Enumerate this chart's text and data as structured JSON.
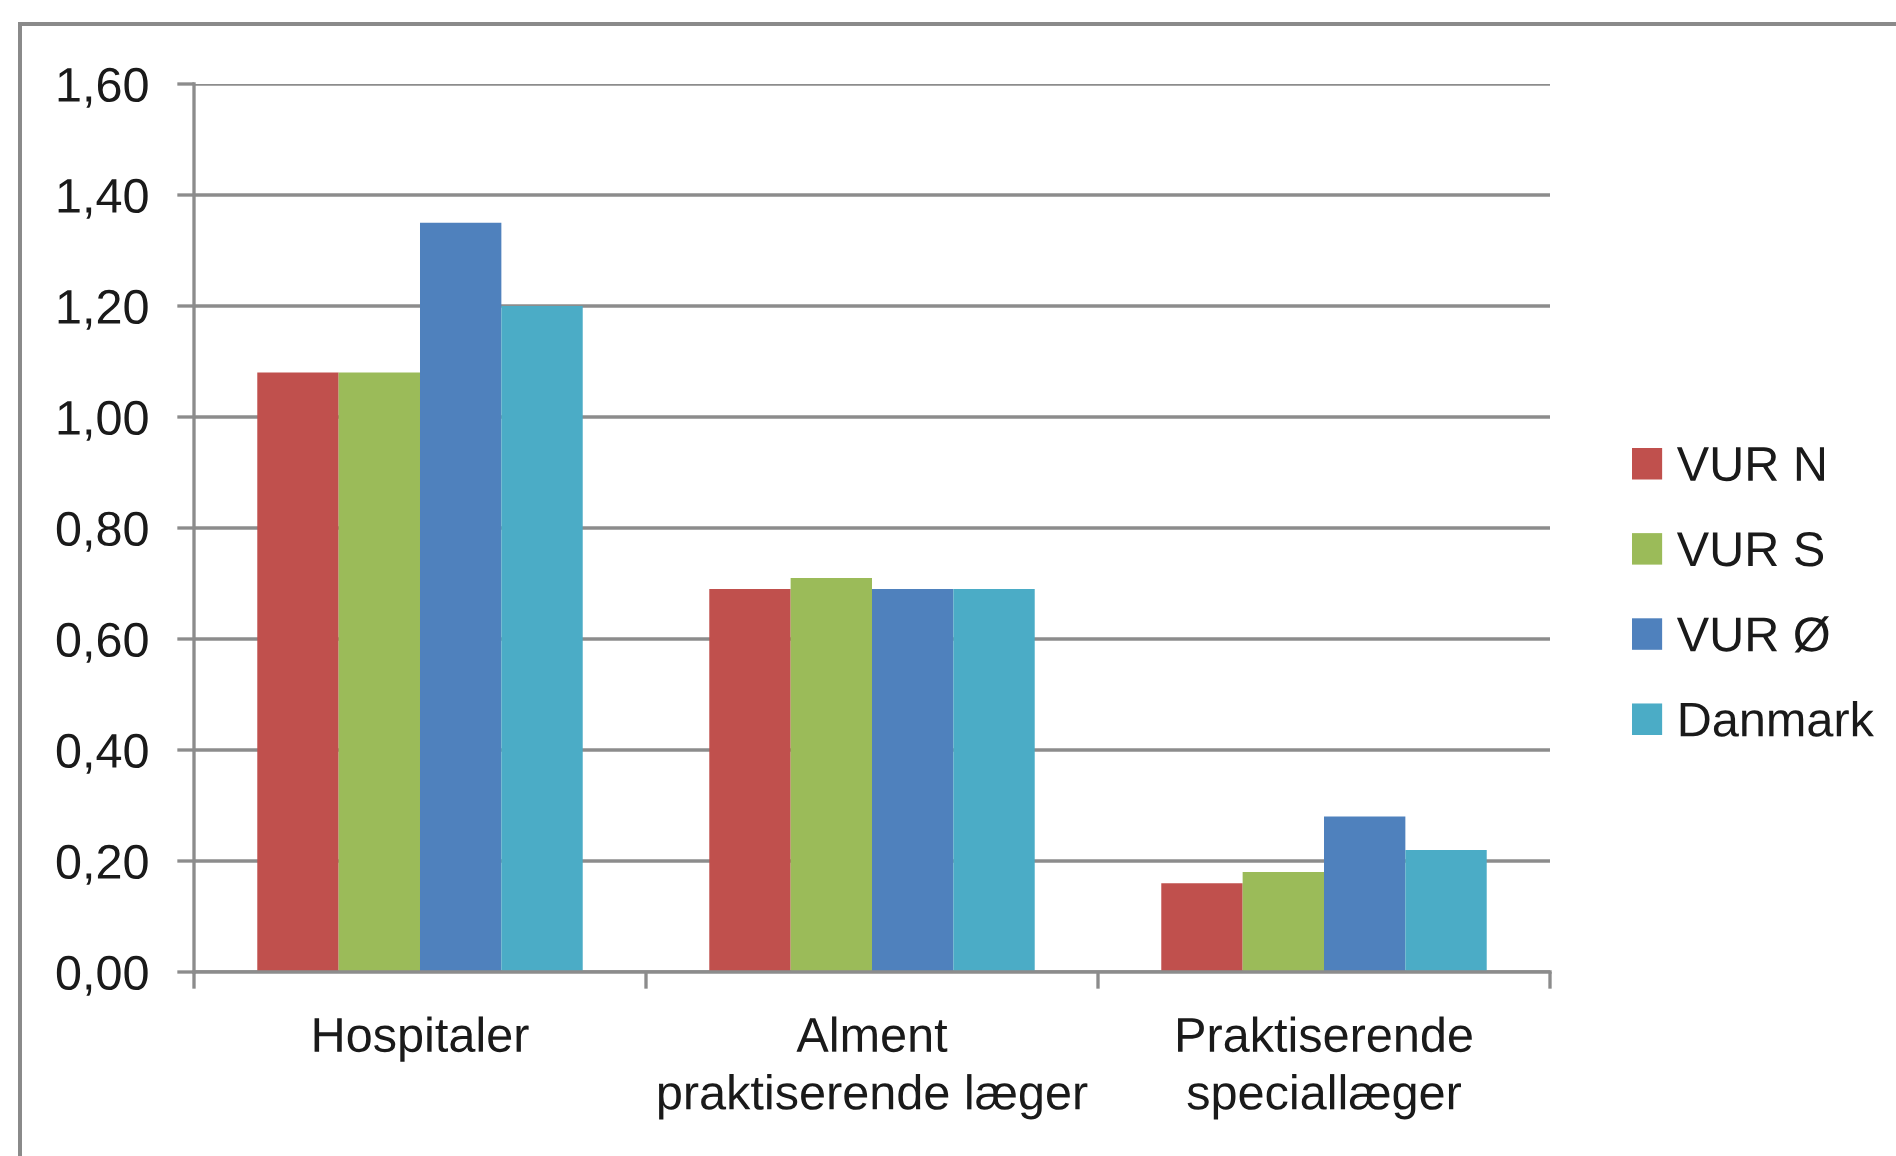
{
  "chart_data": {
    "type": "bar",
    "categories": [
      "Hospitaler",
      "Alment\npraktiserende læger",
      "Praktiserende\nspeciallæger"
    ],
    "series": [
      {
        "name": "VUR N",
        "color": "#c0504d",
        "values": [
          1.08,
          0.69,
          0.16
        ]
      },
      {
        "name": "VUR S",
        "color": "#9bbb59",
        "values": [
          1.08,
          0.71,
          0.18
        ]
      },
      {
        "name": "VUR Ø",
        "color": "#4f81bd",
        "values": [
          1.35,
          0.69,
          0.28
        ]
      },
      {
        "name": "Danmark",
        "color": "#4bacc6",
        "values": [
          1.2,
          0.69,
          0.22
        ]
      }
    ],
    "ylim": [
      0,
      1.6
    ],
    "yticks": [
      {
        "value": 0,
        "label": "0,00"
      },
      {
        "value": 0.2,
        "label": "0,20"
      },
      {
        "value": 0.4,
        "label": "0,40"
      },
      {
        "value": 0.6,
        "label": "0,60"
      },
      {
        "value": 0.8,
        "label": "0,80"
      },
      {
        "value": 1.0,
        "label": "1,00"
      },
      {
        "value": 1.2,
        "label": "1,20"
      },
      {
        "value": 1.4,
        "label": "1,40"
      },
      {
        "value": 1.6,
        "label": "1,60"
      }
    ],
    "grid": "y",
    "legend": "right"
  }
}
